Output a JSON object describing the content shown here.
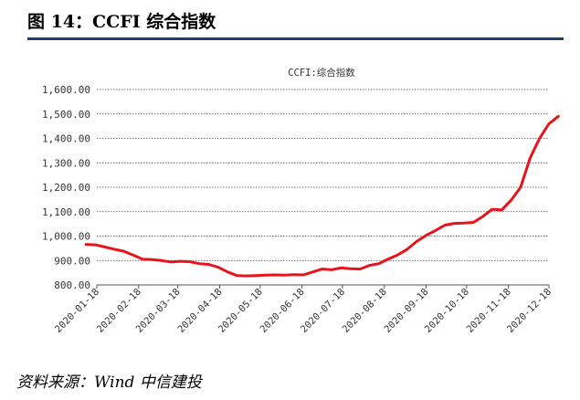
{
  "figure": {
    "title": "图 14：CCFI 综合指数",
    "source": "资料来源：Wind 中信建投"
  },
  "colors": {
    "line": "#e8141b",
    "title_rule": "#1f3f6e",
    "grid": "#000000",
    "text": "#333333"
  },
  "chart_data": {
    "type": "line",
    "title": "CCFI:综合指数",
    "xlabel": "",
    "ylabel": "",
    "ylim": [
      800,
      1600
    ],
    "yticks": [
      "800.00",
      "900.00",
      "1,000.00",
      "1,100.00",
      "1,200.00",
      "1,300.00",
      "1,400.00",
      "1,500.00",
      "1,600.00"
    ],
    "ytick_values": [
      800,
      900,
      1000,
      1100,
      1200,
      1300,
      1400,
      1500,
      1600
    ],
    "xticks": [
      "2020-01-18",
      "2020-02-18",
      "2020-03-18",
      "2020-04-18",
      "2020-05-18",
      "2020-06-18",
      "2020-07-18",
      "2020-08-18",
      "2020-09-18",
      "2020-10-18",
      "2020-11-18",
      "2020-12-18"
    ],
    "grid": true,
    "legend": "none",
    "series": [
      {
        "x": [
          "2020-01-10",
          "2020-01-17",
          "2020-01-24",
          "2020-01-31",
          "2020-02-07",
          "2020-02-14",
          "2020-02-21",
          "2020-02-28",
          "2020-03-06",
          "2020-03-13",
          "2020-03-20",
          "2020-03-27",
          "2020-04-03",
          "2020-04-10",
          "2020-04-17",
          "2020-04-24",
          "2020-05-01",
          "2020-05-08",
          "2020-05-15",
          "2020-05-22",
          "2020-05-29",
          "2020-06-05",
          "2020-06-12",
          "2020-06-19",
          "2020-06-26",
          "2020-07-03",
          "2020-07-10",
          "2020-07-17",
          "2020-07-24",
          "2020-07-31",
          "2020-08-07",
          "2020-08-14",
          "2020-08-21",
          "2020-08-28",
          "2020-09-04",
          "2020-09-11",
          "2020-09-18",
          "2020-09-25",
          "2020-10-02",
          "2020-10-09",
          "2020-10-16",
          "2020-10-23",
          "2020-10-30",
          "2020-11-06",
          "2020-11-13",
          "2020-11-20",
          "2020-11-27",
          "2020-12-04",
          "2020-12-11",
          "2020-12-18",
          "2020-12-25"
        ],
        "values": [
          966,
          964,
          955,
          946,
          938,
          922,
          905,
          904,
          900,
          894,
          897,
          895,
          887,
          884,
          872,
          853,
          838,
          837,
          838,
          840,
          841,
          840,
          842,
          841,
          853,
          865,
          862,
          870,
          866,
          865,
          880,
          887,
          906,
          923,
          946,
          978,
          1003,
          1023,
          1045,
          1052,
          1053,
          1056,
          1080,
          1110,
          1107,
          1147,
          1200,
          1319,
          1400,
          1460,
          1490
        ]
      }
    ]
  }
}
